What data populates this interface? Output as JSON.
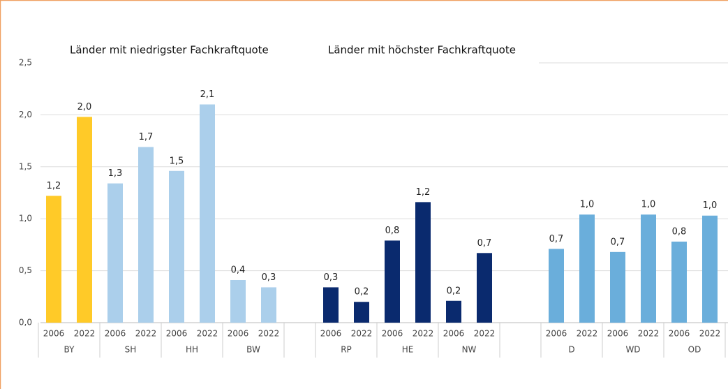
{
  "chart_data": {
    "type": "bar",
    "ylim": [
      0,
      2.5
    ],
    "yticks": [
      {
        "value": 0,
        "label": "0,0"
      },
      {
        "value": 0.5,
        "label": "0,5"
      },
      {
        "value": 1,
        "label": "1,0"
      },
      {
        "value": 1.5,
        "label": "1,5"
      },
      {
        "value": 2,
        "label": "2,0"
      },
      {
        "value": 2.5,
        "label": "2,5"
      }
    ],
    "grid": true,
    "sections": [
      {
        "title": "Länder mit niedrigster Fachkraftquote",
        "groups": [
          {
            "name": "BY",
            "categories": [
              "2006",
              "2022"
            ],
            "values": [
              1.22,
              1.98
            ],
            "value_labels": [
              "1,2",
              "2,0"
            ],
            "color": "#ffca28"
          },
          {
            "name": "SH",
            "categories": [
              "2006",
              "2022"
            ],
            "values": [
              1.34,
              1.69
            ],
            "value_labels": [
              "1,3",
              "1,7"
            ],
            "color": "#abcfeb"
          },
          {
            "name": "HH",
            "categories": [
              "2006",
              "2022"
            ],
            "values": [
              1.46,
              2.1
            ],
            "value_labels": [
              "1,5",
              "2,1"
            ],
            "color": "#abcfeb"
          },
          {
            "name": "BW",
            "categories": [
              "2006",
              "2022"
            ],
            "values": [
              0.41,
              0.34
            ],
            "value_labels": [
              "0,4",
              "0,3"
            ],
            "color": "#abcfeb"
          }
        ]
      },
      {
        "title": "Länder mit höchster Fachkraftquote",
        "groups": [
          {
            "name": "RP",
            "categories": [
              "2006",
              "2022"
            ],
            "values": [
              0.34,
              0.2
            ],
            "value_labels": [
              "0,3",
              "0,2"
            ],
            "color": "#0a2a6e"
          },
          {
            "name": "HE",
            "categories": [
              "2006",
              "2022"
            ],
            "values": [
              0.79,
              1.16
            ],
            "value_labels": [
              "0,8",
              "1,2"
            ],
            "color": "#0a2a6e"
          },
          {
            "name": "NW",
            "categories": [
              "2006",
              "2022"
            ],
            "values": [
              0.21,
              0.67
            ],
            "value_labels": [
              "0,2",
              "0,7"
            ],
            "color": "#0a2a6e"
          }
        ]
      },
      {
        "groups": [
          {
            "name": "D",
            "categories": [
              "2006",
              "2022"
            ],
            "values": [
              0.71,
              1.04
            ],
            "value_labels": [
              "0,7",
              "1,0"
            ],
            "color": "#6aaedb"
          },
          {
            "name": "WD",
            "categories": [
              "2006",
              "2022"
            ],
            "values": [
              0.68,
              1.04
            ],
            "value_labels": [
              "0,7",
              "1,0"
            ],
            "color": "#6aaedb"
          },
          {
            "name": "OD",
            "categories": [
              "2006",
              "2022"
            ],
            "values": [
              0.78,
              1.03
            ],
            "value_labels": [
              "0,8",
              "1,0"
            ],
            "color": "#6aaedb"
          }
        ]
      }
    ]
  }
}
